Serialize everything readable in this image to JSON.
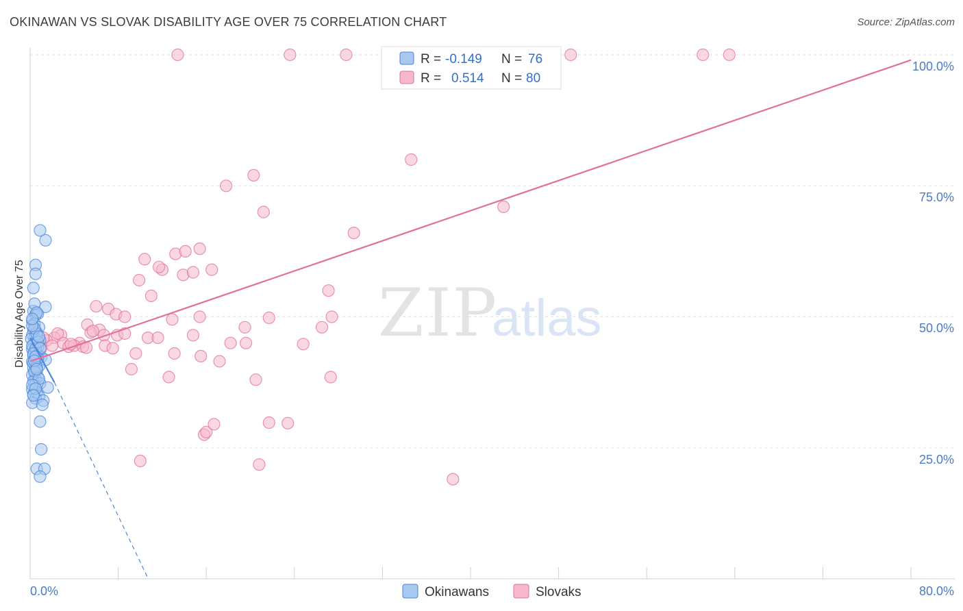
{
  "header": {
    "title": "OKINAWAN VS SLOVAK DISABILITY AGE OVER 75 CORRELATION CHART",
    "source": "Source: ZipAtlas.com"
  },
  "watermark": {
    "zip": "ZIP",
    "atlas": "atlas"
  },
  "chart_data": {
    "type": "scatter",
    "title": "OKINAWAN VS SLOVAK DISABILITY AGE OVER 75 CORRELATION CHART",
    "xlabel": "",
    "ylabel": "Disability Age Over 75",
    "xlim": [
      0,
      80
    ],
    "ylim": [
      0,
      100
    ],
    "x_tick_labels": [
      "0.0%",
      "80.0%"
    ],
    "y_tick_labels": [
      "25.0%",
      "50.0%",
      "75.0%",
      "100.0%"
    ],
    "y_ticks": [
      25,
      50,
      75,
      100
    ],
    "grid": true,
    "legend": {
      "placement": "top-center",
      "rows": [
        {
          "r_label": "R =",
          "r_value": "-0.149",
          "n_label": "N =",
          "n_value": "76"
        },
        {
          "r_label": "R =",
          "r_value": "0.514",
          "n_label": "N =",
          "n_value": "80"
        }
      ]
    },
    "bottom_legend": [
      "Okinawans",
      "Slovaks"
    ],
    "series": [
      {
        "name": "Okinawans",
        "color": "#4a86d8",
        "fill": "#a8c8f0",
        "trend": {
          "x0": 0,
          "y0": 46.0,
          "x1": 2.2,
          "y1": 37.5,
          "dashed_to_x": 13,
          "dashed_to_y": -10
        },
        "points": [
          [
            0.3,
            51.1
          ],
          [
            0.5,
            50.4
          ],
          [
            0.7,
            50.6
          ],
          [
            0.2,
            49.2
          ],
          [
            0.4,
            48.7
          ],
          [
            0.8,
            48.0
          ],
          [
            0.3,
            47.5
          ],
          [
            0.6,
            47.0
          ],
          [
            0.2,
            46.5
          ],
          [
            0.4,
            46.0
          ],
          [
            0.1,
            45.8
          ],
          [
            0.9,
            45.5
          ],
          [
            0.5,
            45.0
          ],
          [
            0.3,
            44.6
          ],
          [
            0.7,
            44.2
          ],
          [
            0.2,
            43.8
          ],
          [
            0.4,
            43.3
          ],
          [
            0.6,
            42.9
          ],
          [
            0.3,
            42.6
          ],
          [
            1.0,
            42.3
          ],
          [
            1.4,
            41.8
          ],
          [
            0.2,
            41.4
          ],
          [
            0.5,
            41.0
          ],
          [
            0.8,
            40.6
          ],
          [
            0.3,
            40.2
          ],
          [
            0.6,
            39.8
          ],
          [
            0.4,
            39.3
          ],
          [
            0.2,
            38.9
          ],
          [
            0.7,
            38.5
          ],
          [
            0.5,
            38.1
          ],
          [
            0.3,
            37.7
          ],
          [
            0.9,
            37.3
          ],
          [
            0.4,
            36.9
          ],
          [
            1.6,
            36.5
          ],
          [
            0.2,
            36.1
          ],
          [
            0.6,
            35.6
          ],
          [
            0.3,
            35.2
          ],
          [
            0.8,
            34.8
          ],
          [
            0.5,
            34.4
          ],
          [
            1.2,
            34.0
          ],
          [
            0.2,
            33.6
          ],
          [
            1.1,
            33.2
          ],
          [
            0.9,
            66.5
          ],
          [
            1.4,
            64.6
          ],
          [
            0.5,
            59.9
          ],
          [
            0.5,
            58.2
          ],
          [
            0.3,
            55.5
          ],
          [
            0.4,
            52.5
          ],
          [
            1.4,
            51.9
          ],
          [
            0.6,
            50.8
          ],
          [
            0.9,
            30.0
          ],
          [
            1.0,
            24.7
          ],
          [
            0.6,
            21.0
          ],
          [
            1.3,
            21.0
          ],
          [
            0.9,
            19.5
          ],
          [
            0.2,
            44.5
          ],
          [
            0.5,
            43.9
          ],
          [
            0.7,
            42.1
          ],
          [
            0.3,
            41.2
          ],
          [
            0.6,
            40.4
          ],
          [
            0.4,
            39.6
          ],
          [
            0.8,
            38.2
          ],
          [
            0.2,
            37.0
          ],
          [
            0.5,
            36.3
          ],
          [
            0.3,
            35.0
          ],
          [
            0.6,
            46.7
          ],
          [
            0.4,
            47.8
          ],
          [
            0.2,
            48.3
          ],
          [
            0.7,
            45.2
          ],
          [
            0.9,
            44.0
          ],
          [
            0.3,
            43.0
          ],
          [
            0.5,
            42.4
          ],
          [
            0.4,
            41.6
          ],
          [
            0.6,
            40.0
          ],
          [
            0.2,
            49.6
          ],
          [
            0.8,
            46.2
          ]
        ]
      },
      {
        "name": "Slovaks",
        "color": "#e07098",
        "fill": "#f5b8cc",
        "trend": {
          "x0": 0,
          "y0": 41.5,
          "x1": 80,
          "y1": 99.0
        },
        "points": [
          [
            13.4,
            100.0
          ],
          [
            23.6,
            100.0
          ],
          [
            28.7,
            100.0
          ],
          [
            49.1,
            100.0
          ],
          [
            61.1,
            100.0
          ],
          [
            63.5,
            100.0
          ],
          [
            34.6,
            80.0
          ],
          [
            20.3,
            77.0
          ],
          [
            17.8,
            75.0
          ],
          [
            21.2,
            70.0
          ],
          [
            43.0,
            71.0
          ],
          [
            29.4,
            66.0
          ],
          [
            10.4,
            61.0
          ],
          [
            13.2,
            62.0
          ],
          [
            13.9,
            58.0
          ],
          [
            14.1,
            62.5
          ],
          [
            15.4,
            63.0
          ],
          [
            14.8,
            58.5
          ],
          [
            16.5,
            59.0
          ],
          [
            12.0,
            59.0
          ],
          [
            11.7,
            59.5
          ],
          [
            9.9,
            57.0
          ],
          [
            11.0,
            54.0
          ],
          [
            27.1,
            55.0
          ],
          [
            6.0,
            52.0
          ],
          [
            7.1,
            51.5
          ],
          [
            7.8,
            50.5
          ],
          [
            8.6,
            50.0
          ],
          [
            12.9,
            49.5
          ],
          [
            15.4,
            50.0
          ],
          [
            21.7,
            49.8
          ],
          [
            27.4,
            50.0
          ],
          [
            19.5,
            48.0
          ],
          [
            26.5,
            48.0
          ],
          [
            5.2,
            48.5
          ],
          [
            6.3,
            47.5
          ],
          [
            5.5,
            47.0
          ],
          [
            7.9,
            46.5
          ],
          [
            8.6,
            46.8
          ],
          [
            2.8,
            46.5
          ],
          [
            2.2,
            46.0
          ],
          [
            1.5,
            45.5
          ],
          [
            3.0,
            45.0
          ],
          [
            4.5,
            45.0
          ],
          [
            6.7,
            46.5
          ],
          [
            10.7,
            46.0
          ],
          [
            11.6,
            46.0
          ],
          [
            14.8,
            46.5
          ],
          [
            18.2,
            45.0
          ],
          [
            19.6,
            45.0
          ],
          [
            24.8,
            44.8
          ],
          [
            2.0,
            44.5
          ],
          [
            3.5,
            44.3
          ],
          [
            4.0,
            44.5
          ],
          [
            4.8,
            44.3
          ],
          [
            5.1,
            44.1
          ],
          [
            6.8,
            44.5
          ],
          [
            7.5,
            44.0
          ],
          [
            9.6,
            43.0
          ],
          [
            13.1,
            43.0
          ],
          [
            15.5,
            42.5
          ],
          [
            17.2,
            41.5
          ],
          [
            1.0,
            44.0
          ],
          [
            0.8,
            45.3
          ],
          [
            1.2,
            46.0
          ],
          [
            9.2,
            40.0
          ],
          [
            12.6,
            38.5
          ],
          [
            20.5,
            38.0
          ],
          [
            27.3,
            38.5
          ],
          [
            15.8,
            27.5
          ],
          [
            16.0,
            28.0
          ],
          [
            16.7,
            29.5
          ],
          [
            21.7,
            29.8
          ],
          [
            23.4,
            29.7
          ],
          [
            10.0,
            22.5
          ],
          [
            20.8,
            21.8
          ],
          [
            38.4,
            19.0
          ],
          [
            5.7,
            47.3
          ],
          [
            3.7,
            44.8
          ],
          [
            2.5,
            46.8
          ]
        ]
      }
    ]
  }
}
